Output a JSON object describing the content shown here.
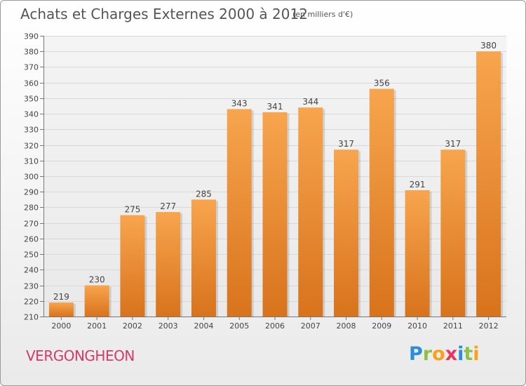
{
  "header": {
    "title": "Achats et Charges Externes 2000 à 2012",
    "subtitle": "(en milliers d'€)"
  },
  "footer": {
    "commune": "VERGONGHEON",
    "logo_letters": [
      {
        "ch": "P",
        "color": "#2a8fd6"
      },
      {
        "ch": "r",
        "color": "#8bc34a"
      },
      {
        "ch": "o",
        "color": "#f7a21b"
      },
      {
        "ch": "x",
        "color": "#e8365d"
      },
      {
        "ch": "i",
        "color": "#2a8fd6"
      },
      {
        "ch": "t",
        "color": "#8bc34a"
      },
      {
        "ch": "i",
        "color": "#f7a21b"
      }
    ]
  },
  "chart_data": {
    "type": "bar",
    "categories": [
      "2000",
      "2001",
      "2002",
      "2003",
      "2004",
      "2005",
      "2006",
      "2007",
      "2008",
      "2009",
      "2010",
      "2011",
      "2012"
    ],
    "values": [
      219,
      230,
      275,
      277,
      285,
      343,
      341,
      344,
      317,
      356,
      291,
      317,
      380
    ],
    "ylim": [
      210,
      390
    ],
    "yticks": [
      210,
      220,
      230,
      240,
      250,
      260,
      270,
      280,
      290,
      300,
      310,
      320,
      330,
      340,
      350,
      360,
      370,
      380,
      390
    ],
    "grid": true,
    "bar_color_top": "#f7a54e",
    "bar_color_bottom": "#d8731c"
  }
}
